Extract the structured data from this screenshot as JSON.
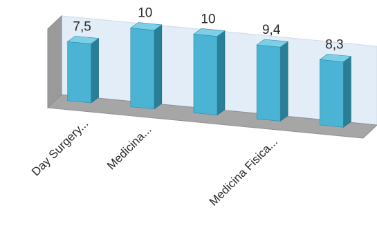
{
  "chart_data": {
    "type": "bar",
    "style": "3d-column",
    "categories": [
      "Day Surgery...",
      "Medicina...",
      "",
      "Medicina Fisica...",
      ""
    ],
    "values": [
      7.5,
      10,
      10,
      9.4,
      8.3
    ],
    "data_labels": [
      "7,5",
      "10",
      "10",
      "9,4",
      "8,3"
    ],
    "title": "",
    "xlabel": "",
    "ylabel": "",
    "ylim": [
      0,
      10
    ],
    "grid": false,
    "legend": "none",
    "colors": {
      "bar_front": "#4bb4d4",
      "bar_side": "#2a7f97",
      "bar_top": "#7ccfe6",
      "back_wall": "#e3edf8",
      "side_wall": "#9a9a9a",
      "floor": "#a6a6a6"
    }
  }
}
